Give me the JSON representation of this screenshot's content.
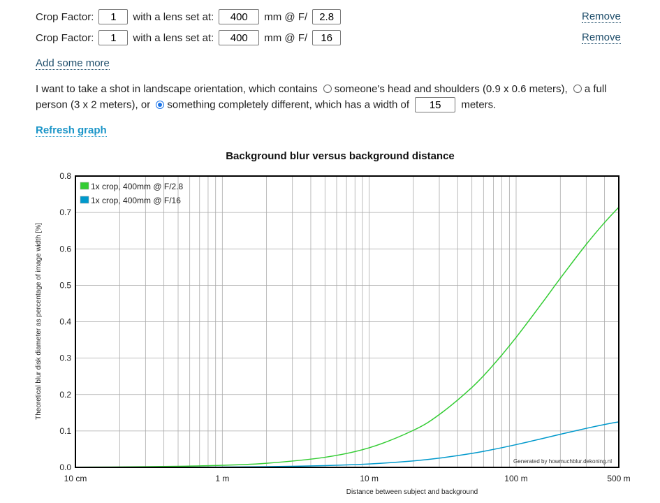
{
  "lenses": [
    {
      "crop_label": "Crop Factor:",
      "crop": "1",
      "lens_label": "with a lens set at:",
      "focal": "400",
      "f_label": "mm @ F/",
      "aperture": "2.8",
      "remove": "Remove"
    },
    {
      "crop_label": "Crop Factor:",
      "crop": "1",
      "lens_label": "with a lens set at:",
      "focal": "400",
      "f_label": "mm @ F/",
      "aperture": "16",
      "remove": "Remove"
    }
  ],
  "add_more": "Add some more",
  "scene": {
    "intro": "I want to take a shot in landscape orientation, which contains",
    "opt1": "someone's head and shoulders (0.9 x 0.6 meters),",
    "opt2": "a full person (3 x 2 meters), or",
    "opt3": "something completely different, which has a width of",
    "width": "15",
    "unit": "meters.",
    "selected": 3
  },
  "refresh": "Refresh graph",
  "chart_data": {
    "type": "line",
    "title": "Background blur versus background distance",
    "xlabel": "Distance between subject and background",
    "ylabel": "Theoretical blur disk diameter as percentage of image width [%]",
    "xscale": "log",
    "xlim": [
      0.1,
      500
    ],
    "ylim": [
      0,
      0.8
    ],
    "xticks": [
      {
        "v": 0.1,
        "label": "10 cm"
      },
      {
        "v": 1,
        "label": "1 m"
      },
      {
        "v": 10,
        "label": "10 m"
      },
      {
        "v": 100,
        "label": "100 m"
      },
      {
        "v": 500,
        "label": "500 m"
      }
    ],
    "yticks": [
      "0.0",
      "0.1",
      "0.2",
      "0.3",
      "0.4",
      "0.5",
      "0.6",
      "0.7",
      "0.8"
    ],
    "grid": true,
    "legend_position": "top-left",
    "watermark": "Generated by howmuchblur.dekoning.nl",
    "x": [
      0.1,
      0.2,
      0.5,
      1,
      2,
      5,
      10,
      20,
      30,
      50,
      70,
      100,
      150,
      200,
      300,
      400,
      500
    ],
    "series": [
      {
        "name": "1x crop, 400mm @ F/2.8",
        "color": "#33cc33",
        "values": [
          0.00057,
          0.00114,
          0.00284,
          0.00567,
          0.01128,
          0.0277,
          0.0538,
          0.1019,
          0.1451,
          0.2196,
          0.2815,
          0.3569,
          0.4509,
          0.5193,
          0.6122,
          0.6723,
          0.7144
        ]
      },
      {
        "name": "1x crop, 400mm @ F/16",
        "color": "#0099cc",
        "values": [
          0.0001,
          0.0002,
          0.0005,
          0.001,
          0.002,
          0.0048,
          0.0094,
          0.0178,
          0.0254,
          0.0384,
          0.0493,
          0.0625,
          0.0789,
          0.0909,
          0.1071,
          0.1177,
          0.125
        ]
      }
    ]
  }
}
